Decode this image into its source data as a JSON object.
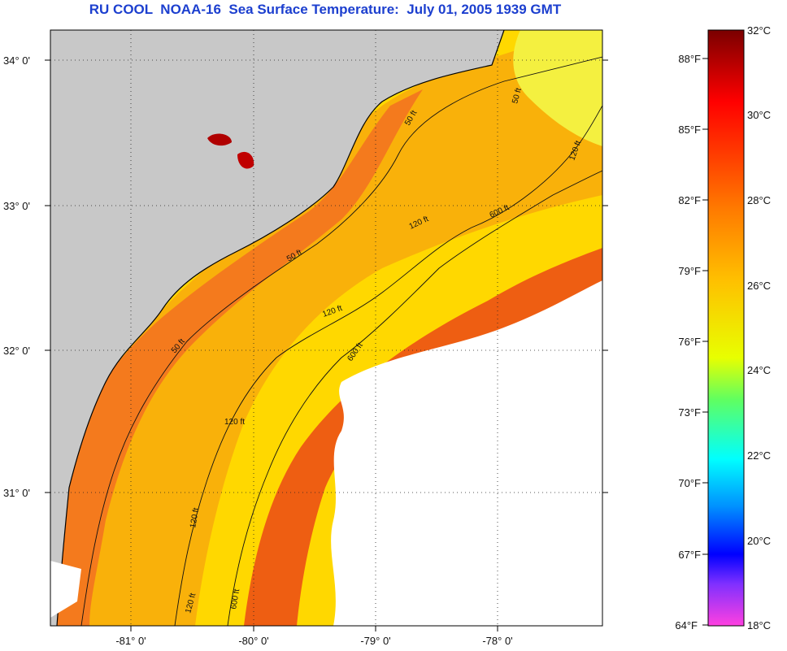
{
  "title": "RU COOL  NOAA-16  Sea Surface Temperature:  July 01, 2005 1939 GMT",
  "map": {
    "lat_ticks": [
      "34° 0'",
      "33° 0'",
      "32° 0'",
      "31° 0'"
    ],
    "lon_ticks": [
      "-81° 0'",
      "-80° 0'",
      "-79° 0'",
      "-78° 0'"
    ],
    "contour_labels": [
      "50 ft",
      "50 ft",
      "50 ft",
      "120 ft",
      "120 ft",
      "120 ft",
      "120 ft",
      "120 ft",
      "600 ft",
      "600 ft",
      "600 ft",
      "50 ft",
      "120 ft"
    ],
    "colors": {
      "land": "#c8c8c8",
      "cloud": "#ffffff",
      "warm_shelf": "#f2771e",
      "mid": "#f7a20f",
      "gulf": "#ef6010",
      "offshore": "#ffd400"
    }
  },
  "colorbar": {
    "fahrenheit_labels": [
      "88°F",
      "85°F",
      "82°F",
      "79°F",
      "76°F",
      "73°F",
      "70°F",
      "67°F",
      "64°F"
    ],
    "celsius_labels": [
      "32°C",
      "30°C",
      "28°C",
      "26°C",
      "24°C",
      "22°C",
      "20°C",
      "18°C"
    ],
    "range_celsius": [
      18,
      32
    ],
    "gradient": [
      "#800000",
      "#ff0000",
      "#ff7f00",
      "#ffd000",
      "#ffff00",
      "#80ff40",
      "#00ffff",
      "#0080ff",
      "#0000ff",
      "#8020ff",
      "#ff40ff"
    ]
  }
}
